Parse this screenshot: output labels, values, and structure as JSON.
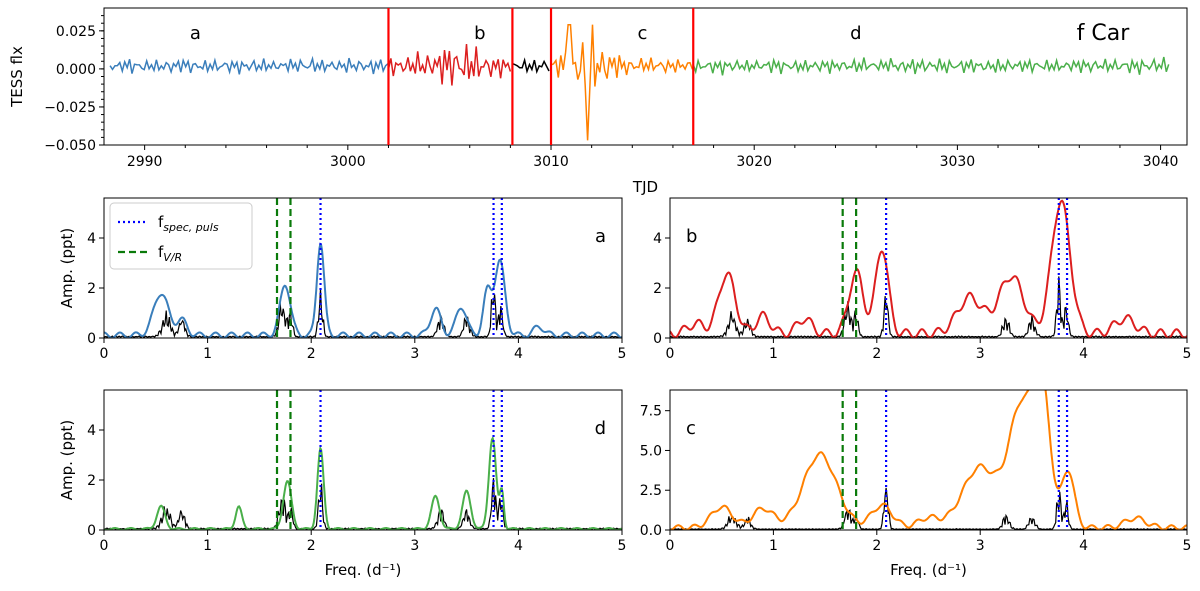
{
  "figure_title": "f Car",
  "colors": {
    "a": "#3a7ebb",
    "b": "#dc1f1f",
    "gap": "#000000",
    "c": "#ff8000",
    "d": "#4aaf4a",
    "marker": "#ff0000",
    "spec": "#0000ff",
    "vr": "#0a7a0a",
    "black": "#000000"
  },
  "chart_data": [
    {
      "type": "line",
      "id": "lightcurve",
      "title": "f Car",
      "xlabel": "TJD",
      "ylabel": "TESS flx",
      "xlim": [
        2988,
        3041.3
      ],
      "ylim": [
        -0.05,
        0.04
      ],
      "xticks": [
        2990,
        3000,
        3010,
        3020,
        3030,
        3040
      ],
      "xtick_labels": [
        "2990",
        "3000",
        "3010",
        "3020",
        "3030",
        "3040"
      ],
      "yticks": [
        -0.05,
        -0.025,
        0.0,
        0.025
      ],
      "ytick_labels": [
        "−0.050",
        "−0.025",
        "0.000",
        "0.025"
      ],
      "segment_labels": [
        {
          "text": "a",
          "x": 2992.5
        },
        {
          "text": "b",
          "x": 3006.5
        },
        {
          "text": "c",
          "x": 3014.5
        },
        {
          "text": "d",
          "x": 3025.0
        }
      ],
      "vertical_markers": [
        3002.0,
        3008.1,
        3010.0,
        3017.0
      ],
      "series": [
        {
          "name": "a",
          "range": [
            2988.3,
            3002.0
          ],
          "amplitude": 0.006,
          "color_key": "a"
        },
        {
          "name": "b",
          "range": [
            3002.0,
            3008.1
          ],
          "amplitude": 0.009,
          "color_key": "b",
          "burst_center": 3005.3,
          "burst_amplitude": 0.01
        },
        {
          "name": "gap",
          "range": [
            3008.1,
            3010.0
          ],
          "amplitude": 0.006,
          "color_key": "gap"
        },
        {
          "name": "c",
          "range": [
            3010.0,
            3017.0
          ],
          "amplitude": 0.006,
          "color_key": "c",
          "burst_center": 3011.8,
          "burst_amplitude": 0.021,
          "min_value": -0.047,
          "max_value": 0.029
        },
        {
          "name": "d",
          "range": [
            3017.0,
            3040.5
          ],
          "amplitude": 0.006,
          "color_key": "d"
        }
      ]
    },
    {
      "type": "line",
      "id": "panel-a",
      "label": "a",
      "xlabel": "",
      "ylabel": "Amp. (ppt)",
      "xlim": [
        0,
        5
      ],
      "ylim": [
        0,
        5.6
      ],
      "xticks": [
        0,
        1,
        2,
        3,
        4,
        5
      ],
      "xtick_labels": [
        "0",
        "1",
        "2",
        "3",
        "4",
        "5"
      ],
      "yticks": [
        0,
        2,
        4
      ],
      "ytick_labels": [
        "0",
        "2",
        "4"
      ],
      "legend": {
        "position": "top-left",
        "entries": [
          {
            "label": "f",
            "sub": "spec, puls",
            "style": "dotted",
            "color_key": "spec"
          },
          {
            "label": "f",
            "sub": "V/R",
            "style": "dashed",
            "color_key": "vr"
          }
        ]
      },
      "spec_freqs": [
        2.09,
        3.76,
        3.84
      ],
      "vr_freqs": [
        1.67,
        1.8
      ],
      "curve_color_key": "a",
      "curve_peaks": [
        [
          0.55,
          1.7,
          0.07
        ],
        [
          0.75,
          0.6,
          0.05
        ],
        [
          1.75,
          2.05,
          0.05
        ],
        [
          2.09,
          3.75,
          0.035
        ],
        [
          3.2,
          1.05,
          0.05
        ],
        [
          3.45,
          1.15,
          0.05
        ],
        [
          3.7,
          1.7,
          0.04
        ],
        [
          3.82,
          2.95,
          0.05
        ],
        [
          4.2,
          0.35,
          0.05
        ]
      ],
      "curve_base": 0.22,
      "ref_peaks": [
        [
          0.6,
          1.05,
          0.04
        ],
        [
          0.75,
          0.9,
          0.03
        ],
        [
          1.72,
          1.7,
          0.03
        ],
        [
          1.8,
          1.1,
          0.02
        ],
        [
          2.09,
          2.1,
          0.02
        ],
        [
          3.25,
          1.0,
          0.03
        ],
        [
          3.5,
          0.9,
          0.03
        ],
        [
          3.76,
          2.5,
          0.02
        ],
        [
          3.83,
          1.6,
          0.02
        ]
      ]
    },
    {
      "type": "line",
      "id": "panel-b",
      "label": "b",
      "xlabel": "",
      "ylabel": "",
      "xlim": [
        0,
        5
      ],
      "ylim": [
        0,
        5.6
      ],
      "xticks": [
        0,
        1,
        2,
        3,
        4,
        5
      ],
      "xtick_labels": [
        "0",
        "1",
        "2",
        "3",
        "4",
        "5"
      ],
      "yticks": [
        0,
        2,
        4
      ],
      "ytick_labels": [
        "0",
        "2",
        "4"
      ],
      "spec_freqs": [
        2.09,
        3.76,
        3.84
      ],
      "vr_freqs": [
        1.67,
        1.8
      ],
      "curve_color_key": "b",
      "curve_peaks": [
        [
          0.55,
          2.4,
          0.08
        ],
        [
          0.25,
          0.4,
          0.08
        ],
        [
          0.9,
          0.7,
          0.07
        ],
        [
          1.3,
          0.6,
          0.07
        ],
        [
          1.8,
          2.45,
          0.07
        ],
        [
          2.05,
          3.45,
          0.06
        ],
        [
          2.9,
          1.45,
          0.12
        ],
        [
          3.3,
          2.3,
          0.12
        ],
        [
          3.78,
          5.3,
          0.09
        ],
        [
          4.4,
          0.6,
          0.1
        ]
      ],
      "curve_base": 0.35,
      "ref_peaks": [
        [
          0.6,
          1.05,
          0.04
        ],
        [
          0.75,
          0.9,
          0.03
        ],
        [
          1.72,
          1.7,
          0.03
        ],
        [
          1.8,
          1.1,
          0.02
        ],
        [
          2.09,
          2.1,
          0.02
        ],
        [
          3.25,
          1.0,
          0.03
        ],
        [
          3.5,
          0.9,
          0.03
        ],
        [
          3.76,
          2.5,
          0.02
        ],
        [
          3.83,
          1.6,
          0.02
        ]
      ]
    },
    {
      "type": "line",
      "id": "panel-d",
      "label": "d",
      "xlabel": "Freq. (d⁻¹)",
      "ylabel": "Amp. (ppt)",
      "xlim": [
        0,
        5
      ],
      "ylim": [
        0,
        5.6
      ],
      "xticks": [
        0,
        1,
        2,
        3,
        4,
        5
      ],
      "xtick_labels": [
        "0",
        "1",
        "2",
        "3",
        "4",
        "5"
      ],
      "yticks": [
        0,
        2,
        4
      ],
      "ytick_labels": [
        "0",
        "2",
        "4"
      ],
      "spec_freqs": [
        2.09,
        3.76,
        3.84
      ],
      "vr_freqs": [
        1.67,
        1.8
      ],
      "curve_color_key": "d",
      "curve_peaks": [
        [
          0.55,
          0.9,
          0.04
        ],
        [
          1.3,
          0.9,
          0.03
        ],
        [
          1.77,
          1.9,
          0.04
        ],
        [
          2.09,
          3.2,
          0.03
        ],
        [
          3.2,
          1.3,
          0.04
        ],
        [
          3.5,
          1.5,
          0.04
        ],
        [
          3.75,
          3.65,
          0.035
        ],
        [
          3.84,
          1.5,
          0.02
        ]
      ],
      "curve_base": 0.08,
      "ref_peaks": [
        [
          0.6,
          1.05,
          0.04
        ],
        [
          0.75,
          0.9,
          0.03
        ],
        [
          1.72,
          1.7,
          0.03
        ],
        [
          1.8,
          1.1,
          0.02
        ],
        [
          2.09,
          2.1,
          0.02
        ],
        [
          3.25,
          1.0,
          0.03
        ],
        [
          3.5,
          0.9,
          0.03
        ],
        [
          3.76,
          2.5,
          0.02
        ],
        [
          3.83,
          1.6,
          0.02
        ]
      ]
    },
    {
      "type": "line",
      "id": "panel-c",
      "label": "c",
      "xlabel": "Freq. (d⁻¹)",
      "ylabel": "",
      "xlim": [
        0,
        5
      ],
      "ylim": [
        0,
        8.8
      ],
      "xticks": [
        0,
        1,
        2,
        3,
        4,
        5
      ],
      "xtick_labels": [
        "0",
        "1",
        "2",
        "3",
        "4",
        "5"
      ],
      "yticks": [
        0,
        2.5,
        5.0,
        7.5
      ],
      "ytick_labels": [
        "0.0",
        "2.5",
        "5.0",
        "7.5"
      ],
      "spec_freqs": [
        2.09,
        3.76,
        3.84
      ],
      "vr_freqs": [
        1.67,
        1.8
      ],
      "curve_color_key": "c",
      "curve_peaks": [
        [
          0.5,
          1.3,
          0.1
        ],
        [
          0.9,
          1.2,
          0.1
        ],
        [
          1.45,
          4.6,
          0.16
        ],
        [
          2.05,
          1.4,
          0.1
        ],
        [
          2.5,
          0.6,
          0.1
        ],
        [
          3.0,
          3.8,
          0.17
        ],
        [
          3.4,
          7.5,
          0.12
        ],
        [
          3.6,
          8.0,
          0.08
        ],
        [
          3.85,
          3.6,
          0.06
        ],
        [
          4.5,
          0.6,
          0.1
        ]
      ],
      "curve_base": 0.3,
      "ref_peaks": [
        [
          0.6,
          1.05,
          0.04
        ],
        [
          0.75,
          0.9,
          0.03
        ],
        [
          1.72,
          1.7,
          0.03
        ],
        [
          1.8,
          1.1,
          0.02
        ],
        [
          2.09,
          3.4,
          0.02
        ],
        [
          3.25,
          1.0,
          0.03
        ],
        [
          3.5,
          0.9,
          0.03
        ],
        [
          3.76,
          2.9,
          0.02
        ],
        [
          3.83,
          2.0,
          0.02
        ]
      ]
    }
  ]
}
